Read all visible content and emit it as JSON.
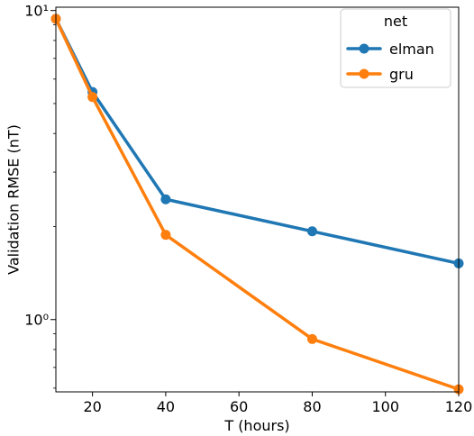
{
  "chart_data": {
    "type": "line",
    "xlabel": "T (hours)",
    "ylabel": "Validation RMSE (nT)",
    "x": [
      10,
      20,
      40,
      80,
      120
    ],
    "xlim": [
      10,
      120
    ],
    "yscale": "log",
    "ylim": [
      0.5835,
      10.25
    ],
    "xticks": [
      20,
      40,
      60,
      80,
      100,
      120
    ],
    "xtick_labels": [
      "20",
      "40",
      "60",
      "80",
      "100",
      "120"
    ],
    "yticks_major": [
      1,
      10
    ],
    "ytick_labels": [
      "10⁰",
      "10¹"
    ],
    "yticks_minor": [
      0.6,
      0.7,
      0.8,
      0.9,
      2,
      3,
      4,
      5,
      6,
      7,
      8,
      9
    ],
    "grid": false,
    "legend": {
      "title": "net",
      "position": "top-right"
    },
    "series": [
      {
        "name": "elman",
        "color": "#1f77b4",
        "values": [
          9.4,
          5.45,
          2.45,
          1.93,
          1.52
        ]
      },
      {
        "name": "gru",
        "color": "#ff7f0e",
        "values": [
          9.4,
          5.25,
          1.88,
          0.865,
          0.595
        ]
      }
    ]
  }
}
